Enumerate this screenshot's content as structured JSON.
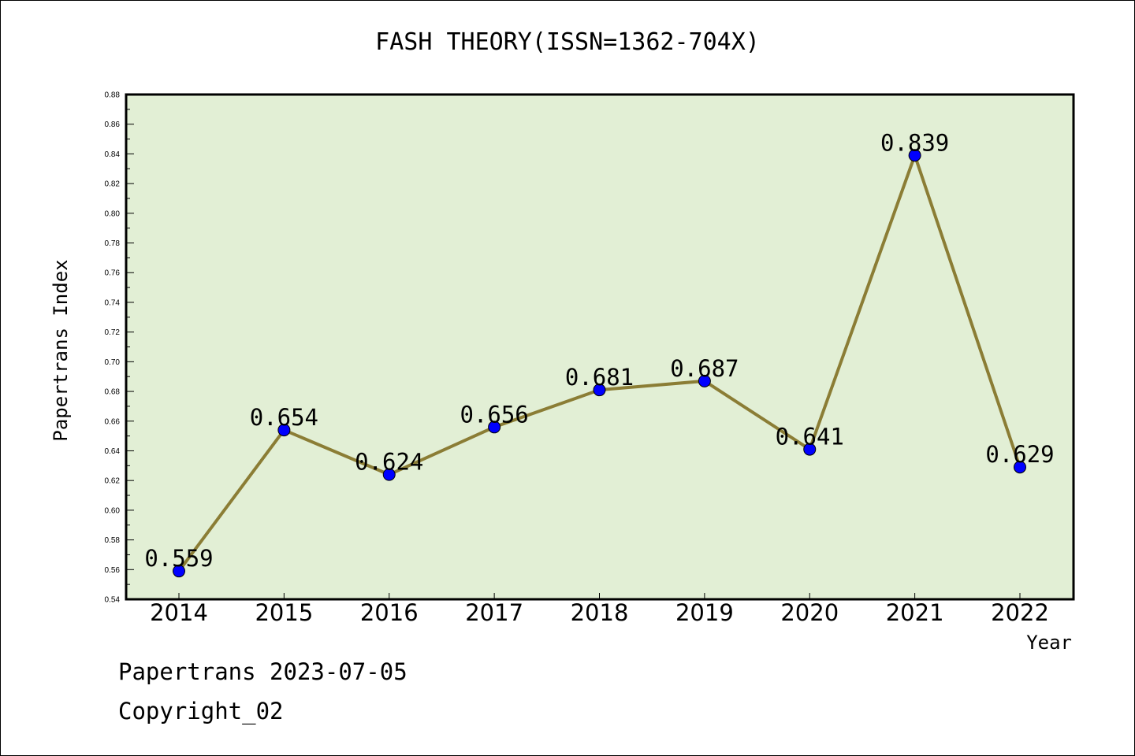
{
  "chart_data": {
    "type": "line",
    "title": "FASH THEORY(ISSN=1362-704X)",
    "xlabel": "Year",
    "ylabel": "Papertrans Index",
    "categories": [
      "2014",
      "2015",
      "2016",
      "2017",
      "2018",
      "2019",
      "2020",
      "2021",
      "2022"
    ],
    "series": [
      {
        "values": [
          0.559,
          0.654,
          0.624,
          0.656,
          0.681,
          0.687,
          0.641,
          0.839,
          0.629
        ],
        "data_labels": [
          "0.559",
          "0.654",
          "0.624",
          "0.656",
          "0.681",
          "0.687",
          "0.641",
          "0.839",
          "0.629"
        ]
      }
    ],
    "ylim": [
      0.54,
      0.88
    ],
    "yticks": [
      "0.54",
      "0.56",
      "0.58",
      "0.60",
      "0.62",
      "0.64",
      "0.66",
      "0.68",
      "0.70",
      "0.72",
      "0.74",
      "0.76",
      "0.78",
      "0.80",
      "0.82",
      "0.84",
      "0.86",
      "0.88"
    ],
    "grid": false,
    "legend": "none",
    "colors": {
      "plot_background": "#e2efd5",
      "line": "#8b7d35",
      "marker": "#0000ff"
    }
  },
  "footer": {
    "line1": "Papertrans 2023-07-05",
    "line2": "Copyright_02"
  }
}
